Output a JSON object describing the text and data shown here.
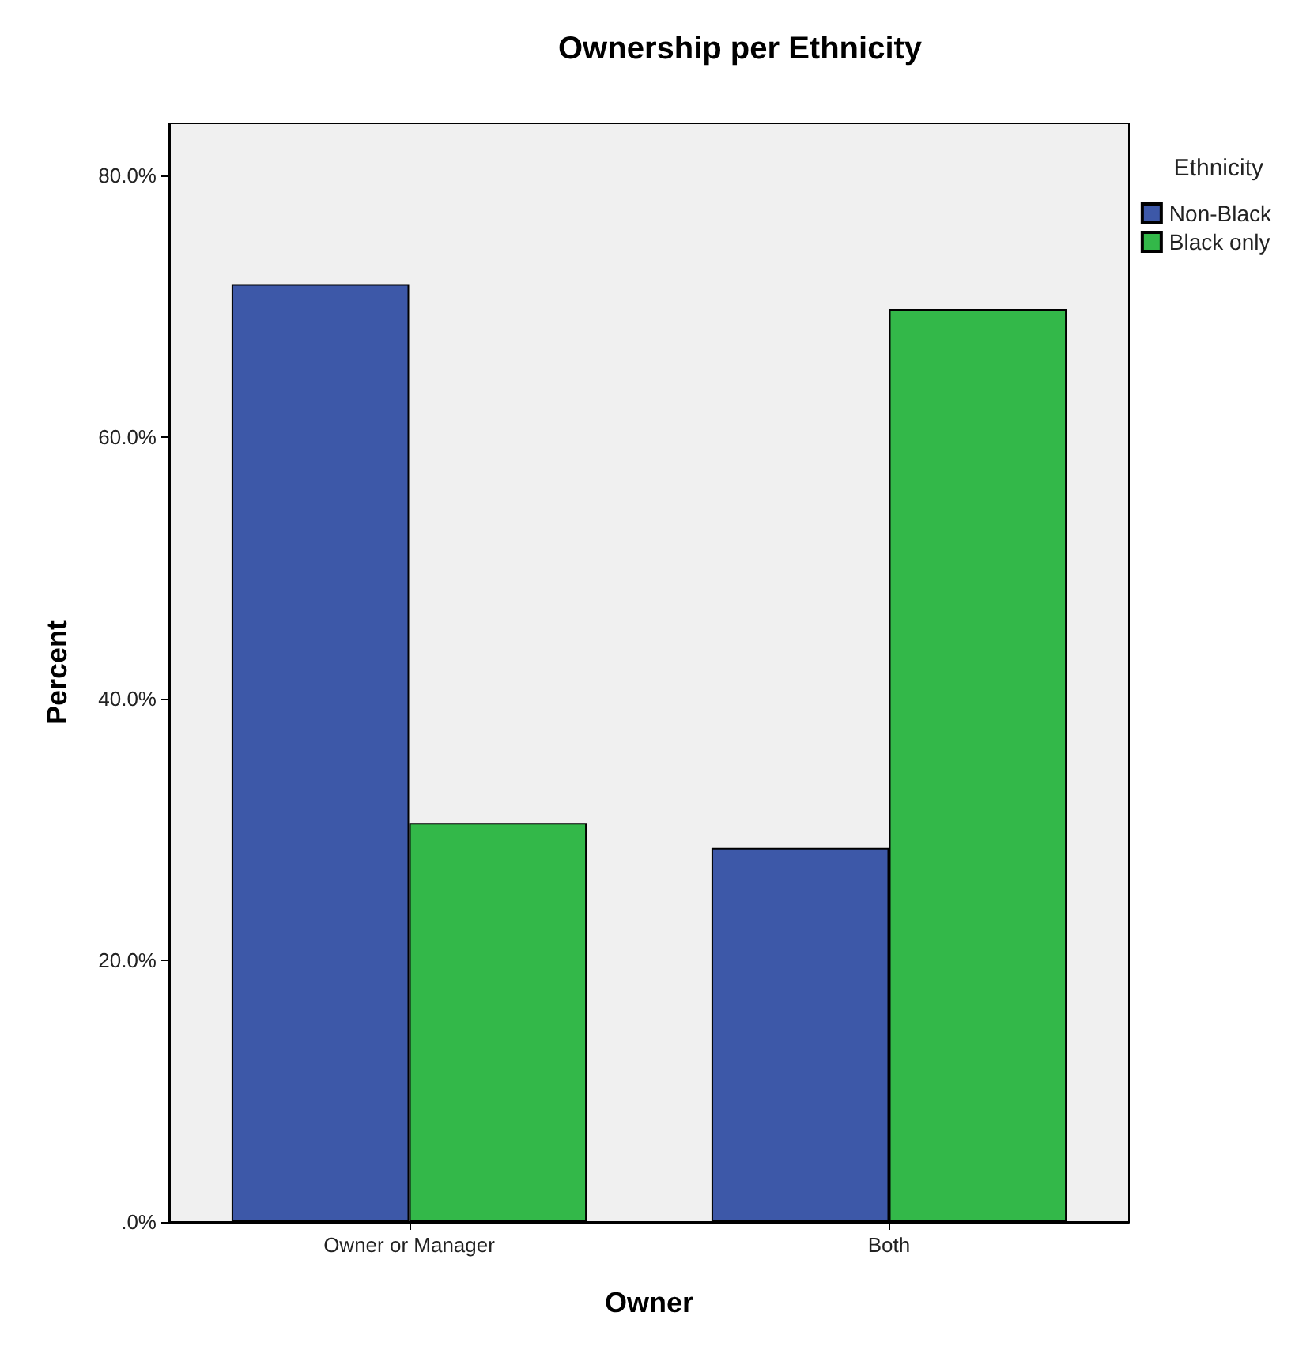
{
  "chart_data": {
    "type": "bar",
    "title": "Ownership per Ethnicity",
    "xlabel": "Owner",
    "ylabel": "Percent",
    "legend_title": "Ethnicity",
    "legend": "top right",
    "categories": [
      "Owner or Manager",
      "Both"
    ],
    "series": [
      {
        "name": "Non-Black",
        "color": "#3d58a8",
        "values": [
          71.7,
          28.6
        ]
      },
      {
        "name": "Black only",
        "color": "#33b849",
        "values": [
          30.5,
          69.8
        ]
      }
    ],
    "ylim": [
      0,
      84
    ],
    "yticks": [
      {
        "value": 0,
        "label": ".0%"
      },
      {
        "value": 20,
        "label": "20.0%"
      },
      {
        "value": 40,
        "label": "40.0%"
      },
      {
        "value": 60,
        "label": "60.0%"
      },
      {
        "value": 80,
        "label": "80.0%"
      }
    ],
    "grid": false
  }
}
